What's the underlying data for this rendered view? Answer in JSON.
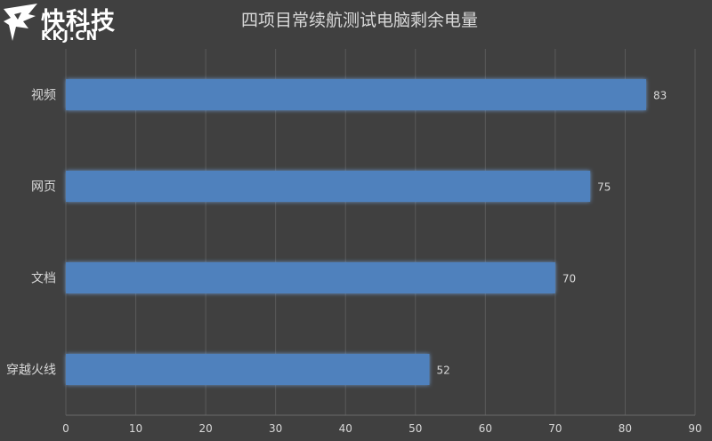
{
  "watermark": {
    "name_cn": "快科技",
    "name_en": "KKJ.CN"
  },
  "chart_data": {
    "type": "bar",
    "orientation": "horizontal",
    "title": "四项目常续航测试电脑剩余电量",
    "categories": [
      "视频",
      "网页",
      "文档",
      "穿越火线"
    ],
    "values": [
      83,
      75,
      70,
      52
    ],
    "xlim": [
      0,
      90
    ],
    "xticks": [
      0,
      10,
      20,
      30,
      40,
      50,
      60,
      70,
      80,
      90
    ],
    "grid": true,
    "data_labels": true,
    "colors": {
      "bar": "#4f81bd",
      "background": "#404040",
      "grid": "#5a5a5a",
      "text": "#d9d9d9",
      "title": "#d9d9d9"
    }
  }
}
